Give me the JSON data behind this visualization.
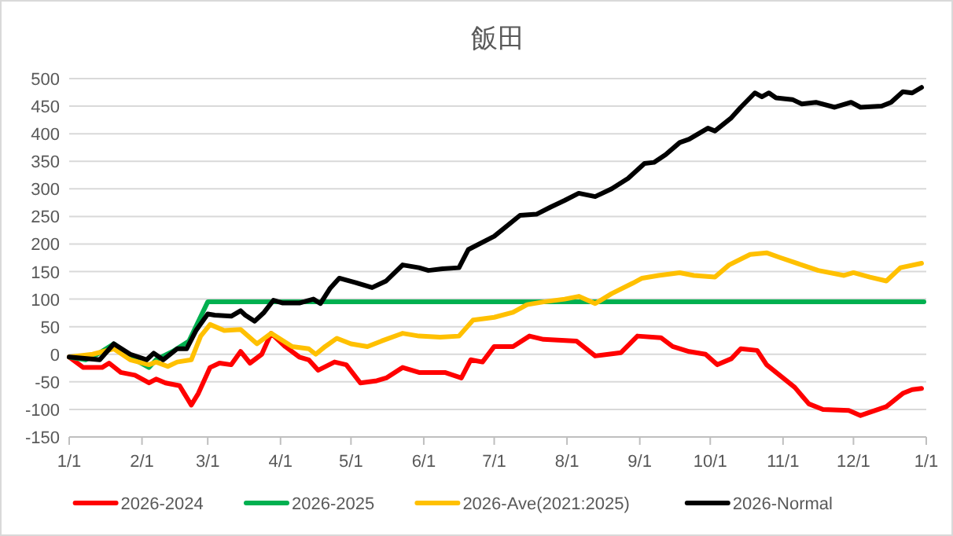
{
  "chart_data": {
    "type": "line",
    "title": "飯田",
    "xlim": [
      "2026-01-01",
      "2027-01-01"
    ],
    "xticks": [
      {
        "value": "2026-01-01",
        "label": "1/1"
      },
      {
        "value": "2026-02-01",
        "label": "2/1"
      },
      {
        "value": "2026-03-01",
        "label": "3/1"
      },
      {
        "value": "2026-04-01",
        "label": "4/1"
      },
      {
        "value": "2026-05-01",
        "label": "5/1"
      },
      {
        "value": "2026-06-01",
        "label": "6/1"
      },
      {
        "value": "2026-07-01",
        "label": "7/1"
      },
      {
        "value": "2026-08-01",
        "label": "8/1"
      },
      {
        "value": "2026-09-01",
        "label": "9/1"
      },
      {
        "value": "2026-10-01",
        "label": "10/1"
      },
      {
        "value": "2026-11-01",
        "label": "11/1"
      },
      {
        "value": "2026-12-01",
        "label": "12/1"
      },
      {
        "value": "2027-01-01",
        "label": "1/1"
      }
    ],
    "ylim": [
      -150,
      500
    ],
    "yticks": [
      -150,
      -100,
      -50,
      0,
      50,
      100,
      150,
      200,
      250,
      300,
      350,
      400,
      450,
      500
    ],
    "grid": "y",
    "legend": "bottom",
    "line_style": "solid",
    "marker": "none",
    "series": [
      {
        "name": "2026-2024",
        "color": "#ff0000",
        "x": [
          "2026-01-01",
          "2026-01-07",
          "2026-01-15",
          "2026-01-18",
          "2026-01-23",
          "2026-01-29",
          "2026-02-04",
          "2026-02-07",
          "2026-02-11",
          "2026-02-17",
          "2026-02-19",
          "2026-02-22",
          "2026-02-25",
          "2026-03-02",
          "2026-03-06",
          "2026-03-11",
          "2026-03-15",
          "2026-03-19",
          "2026-03-24",
          "2026-03-28",
          "2026-04-03",
          "2026-04-09",
          "2026-04-13",
          "2026-04-17",
          "2026-04-24",
          "2026-04-29",
          "2026-05-05",
          "2026-05-12",
          "2026-05-16",
          "2026-05-23",
          "2026-05-30",
          "2026-06-10",
          "2026-06-17",
          "2026-06-21",
          "2026-06-26",
          "2026-07-01",
          "2026-07-09",
          "2026-07-16",
          "2026-07-22",
          "2026-08-05",
          "2026-08-13",
          "2026-08-24",
          "2026-08-31",
          "2026-09-10",
          "2026-09-15",
          "2026-09-22",
          "2026-09-29",
          "2026-10-04",
          "2026-10-10",
          "2026-10-14",
          "2026-10-21",
          "2026-10-25",
          "2026-11-01",
          "2026-11-06",
          "2026-11-12",
          "2026-11-18",
          "2026-11-29",
          "2026-12-04",
          "2026-12-15",
          "2026-12-22",
          "2026-12-26",
          "2026-12-30"
        ],
        "values": [
          -5,
          -24,
          -24,
          -16,
          -33,
          -38,
          -52,
          -45,
          -52,
          -57,
          -71,
          -92,
          -71,
          -24,
          -16,
          -19,
          5,
          -16,
          0,
          38,
          14,
          -5,
          -10,
          -29,
          -14,
          -19,
          -52,
          -48,
          -43,
          -24,
          -33,
          -33,
          -43,
          -10,
          -14,
          14,
          14,
          33,
          27,
          24,
          -3,
          3,
          33,
          30,
          14,
          5,
          0,
          -19,
          -8,
          10,
          7,
          -19,
          -43,
          -60,
          -90,
          -100,
          -102,
          -111,
          -95,
          -71,
          -64,
          -62
        ]
      },
      {
        "name": "2026-2025",
        "color": "#00b050",
        "x": [
          "2026-01-01",
          "2026-01-08",
          "2026-01-13",
          "2026-01-20",
          "2026-01-27",
          "2026-02-04",
          "2026-02-07",
          "2026-02-14",
          "2026-02-21",
          "2026-03-01",
          "2026-12-31"
        ],
        "values": [
          -5,
          -10,
          0,
          19,
          -5,
          -24,
          -10,
          5,
          24,
          95,
          95
        ]
      },
      {
        "name": "2026-Ave(2021:2025)",
        "color": "#ffc000",
        "x": [
          "2026-01-01",
          "2026-01-11",
          "2026-01-20",
          "2026-01-27",
          "2026-02-04",
          "2026-02-07",
          "2026-02-12",
          "2026-02-16",
          "2026-02-22",
          "2026-02-26",
          "2026-03-02",
          "2026-03-08",
          "2026-03-15",
          "2026-03-22",
          "2026-03-28",
          "2026-04-06",
          "2026-04-13",
          "2026-04-16",
          "2026-04-20",
          "2026-04-25",
          "2026-05-01",
          "2026-05-08",
          "2026-05-14",
          "2026-05-23",
          "2026-05-30",
          "2026-06-08",
          "2026-06-16",
          "2026-06-22",
          "2026-07-01",
          "2026-07-09",
          "2026-07-15",
          "2026-07-22",
          "2026-07-31",
          "2026-08-06",
          "2026-08-13",
          "2026-08-20",
          "2026-08-29",
          "2026-09-02",
          "2026-09-09",
          "2026-09-18",
          "2026-09-24",
          "2026-10-03",
          "2026-10-09",
          "2026-10-18",
          "2026-10-25",
          "2026-10-31",
          "2026-11-09",
          "2026-11-16",
          "2026-11-27",
          "2026-12-01",
          "2026-12-08",
          "2026-12-15",
          "2026-12-21",
          "2026-12-30"
        ],
        "values": [
          -5,
          0,
          10,
          -10,
          -19,
          -14,
          -22,
          -14,
          -10,
          33,
          54,
          43,
          45,
          19,
          38,
          14,
          10,
          0,
          14,
          29,
          19,
          14,
          24,
          38,
          33,
          31,
          33,
          62,
          67,
          76,
          90,
          95,
          100,
          105,
          92,
          110,
          129,
          138,
          143,
          148,
          143,
          140,
          162,
          181,
          184,
          175,
          162,
          152,
          143,
          148,
          140,
          133,
          157,
          165
        ]
      },
      {
        "name": "2026-Normal",
        "color": "#000000",
        "x": [
          "2026-01-01",
          "2026-01-14",
          "2026-01-20",
          "2026-01-27",
          "2026-02-03",
          "2026-02-06",
          "2026-02-10",
          "2026-02-16",
          "2026-02-20",
          "2026-02-24",
          "2026-03-01",
          "2026-03-04",
          "2026-03-11",
          "2026-03-15",
          "2026-03-17",
          "2026-03-21",
          "2026-03-25",
          "2026-03-29",
          "2026-04-02",
          "2026-04-09",
          "2026-04-15",
          "2026-04-18",
          "2026-04-22",
          "2026-04-26",
          "2026-05-03",
          "2026-05-10",
          "2026-05-16",
          "2026-05-23",
          "2026-05-30",
          "2026-06-03",
          "2026-06-09",
          "2026-06-16",
          "2026-06-20",
          "2026-07-01",
          "2026-07-12",
          "2026-07-19",
          "2026-07-25",
          "2026-07-31",
          "2026-08-06",
          "2026-08-13",
          "2026-08-20",
          "2026-08-27",
          "2026-09-03",
          "2026-09-07",
          "2026-09-12",
          "2026-09-18",
          "2026-09-22",
          "2026-09-30",
          "2026-10-03",
          "2026-10-10",
          "2026-10-14",
          "2026-10-20",
          "2026-10-23",
          "2026-10-26",
          "2026-10-29",
          "2026-11-05",
          "2026-11-09",
          "2026-11-15",
          "2026-11-23",
          "2026-11-30",
          "2026-12-04",
          "2026-12-13",
          "2026-12-17",
          "2026-12-22",
          "2026-12-26",
          "2026-12-30"
        ],
        "values": [
          -5,
          -10,
          19,
          0,
          -10,
          2,
          -10,
          10,
          10,
          43,
          73,
          71,
          69,
          79,
          71,
          60,
          76,
          98,
          93,
          93,
          100,
          92,
          119,
          138,
          130,
          121,
          133,
          162,
          157,
          152,
          155,
          157,
          190,
          214,
          252,
          254,
          267,
          279,
          292,
          286,
          300,
          319,
          346,
          348,
          362,
          384,
          390,
          410,
          405,
          429,
          448,
          474,
          467,
          474,
          465,
          462,
          454,
          457,
          448,
          457,
          448,
          450,
          457,
          476,
          474,
          484
        ]
      }
    ]
  }
}
